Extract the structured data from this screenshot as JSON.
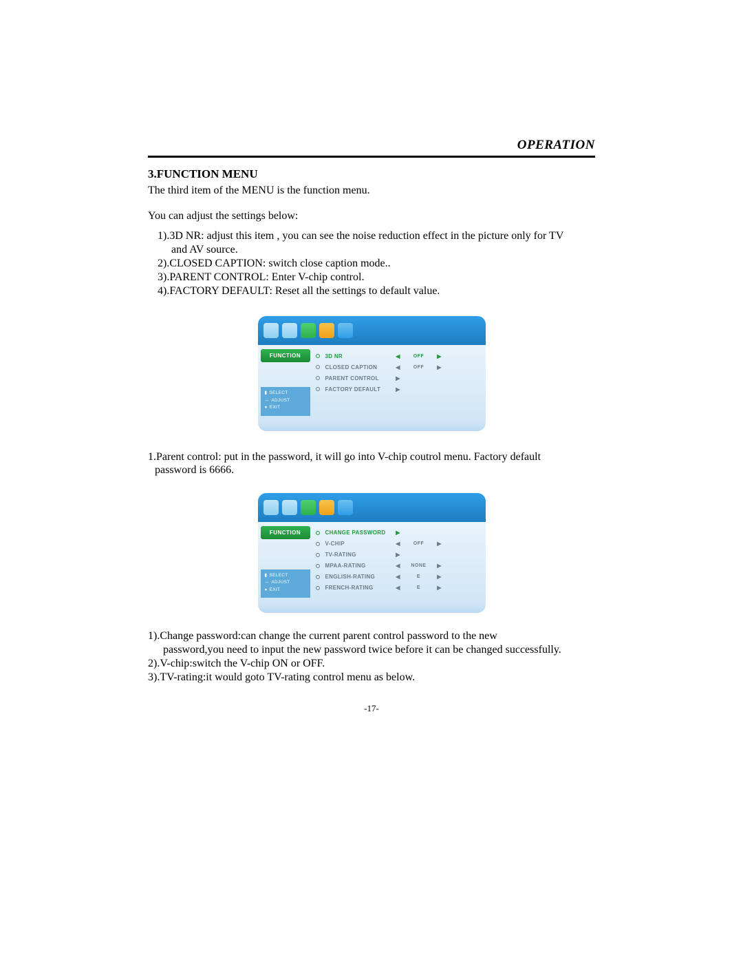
{
  "header": {
    "title": "OPERATION"
  },
  "section": {
    "heading": "3.FUNCTION MENU",
    "intro1": "The third item of the MENU is the function menu.",
    "intro2": "You can adjust the settings below:",
    "bullets": [
      {
        "n": "1).",
        "text": "3D NR: adjust  this item , you can see the noise reduction effect in the picture only  for TV",
        "cont": "and AV source."
      },
      {
        "n": "2).",
        "text": "CLOSED CAPTION: switch close caption mode.."
      },
      {
        "n": "3).",
        "text": "PARENT CONTROL: Enter V-chip control."
      },
      {
        "n": "4).",
        "text": "FACTORY  DEFAULT: Reset all the settings to default value."
      }
    ],
    "mid_para_1": "1.Parent control:  put in the password, it will  go into V-chip coutrol menu. Factory  default",
    "mid_para_1_cont": "password is 6666.",
    "after2": [
      {
        "n": "1).",
        "text": "Change password:can change the current parent control password to the new",
        "cont": "password,you  need to input the new  password  twice before it can be changed  successfully."
      },
      {
        "n": "2).",
        "text": "V-chip:switch the V-chip ON or OFF."
      },
      {
        "n": "3).",
        "text": "TV-rating:it would goto TV-rating control menu as below."
      }
    ]
  },
  "osd_common": {
    "category_label": "FUNCTION",
    "hints": {
      "select": "SELECT",
      "adjust": "ADJUST",
      "exit": "EXIT"
    },
    "tab_colors": [
      "#8fd0ef",
      "#8fd0ef",
      "#2fb24e",
      "#f0a11a",
      "#2f9ee6"
    ],
    "colors": {
      "header_grad_top": "#2f9ee6",
      "header_grad_bot": "#1e7dc2",
      "body_grad_top": "#e9f3fb",
      "body_grad_bot": "#cfe5f6",
      "selected": "#1e9a3c",
      "normal": "#6b7b88",
      "cat_grad_top": "#2fb24e",
      "cat_grad_bot": "#1c8a38"
    }
  },
  "osd1": {
    "rows": [
      {
        "label": "3D NR",
        "left": true,
        "value": "OFF",
        "right": true,
        "selected": true
      },
      {
        "label": "CLOSED CAPTION",
        "left": true,
        "value": "OFF",
        "right": true,
        "selected": false
      },
      {
        "label": "PARENT CONTROL",
        "left": false,
        "value": "",
        "right": true,
        "selected": false,
        "enter_only": true
      },
      {
        "label": "FACTORY DEFAULT",
        "left": false,
        "value": "",
        "right": true,
        "selected": false,
        "enter_only": true
      }
    ]
  },
  "osd2": {
    "rows": [
      {
        "label": "CHANGE PASSWORD",
        "left": false,
        "value": "",
        "right": true,
        "selected": true,
        "enter_only": true
      },
      {
        "label": "V-CHIP",
        "left": true,
        "value": "OFF",
        "right": true,
        "selected": false
      },
      {
        "label": "TV-RATING",
        "left": false,
        "value": "",
        "right": true,
        "selected": false,
        "enter_only": true
      },
      {
        "label": "MPAA-RATING",
        "left": true,
        "value": "NONE",
        "right": true,
        "selected": false
      },
      {
        "label": "ENGLISH-RATING",
        "left": true,
        "value": "E",
        "right": true,
        "selected": false
      },
      {
        "label": "FRENCH-RATING",
        "left": true,
        "value": "E",
        "right": true,
        "selected": false
      }
    ]
  },
  "page_number": "-17-"
}
